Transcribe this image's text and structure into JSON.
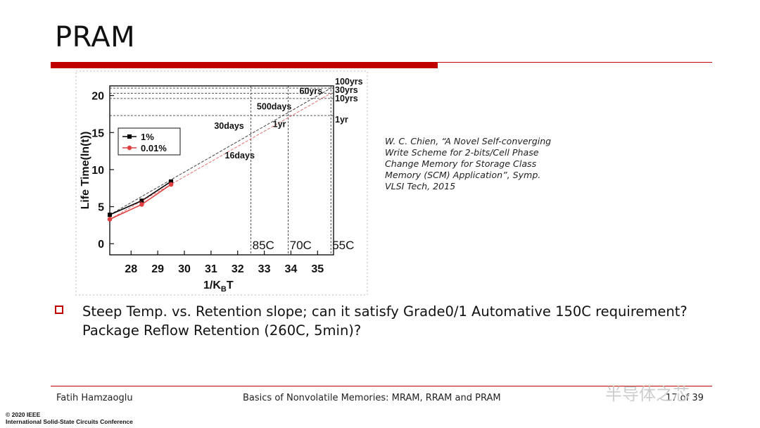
{
  "slide": {
    "title": "PRAM",
    "citation": "W. C. Chien, “A Novel Self-converging\nWrite Scheme for 2-bits/Cell Phase\nChange Memory for Storage Class\nMemory (SCM) Application”, Symp.\nVLSI Tech, 2015",
    "bullet": "Steep Temp. vs. Retention slope; can it satisfy Grade0/1 Automative 150C requirement? Package Reflow Retention (260C, 5min)?",
    "footer_author": "Fatih Hamzaoglu",
    "footer_title": "Basics of Nonvolatile Memories: MRAM, RRAM and PRAM",
    "footer_page": "17 of 39",
    "copyright_line1": "© 2020 IEEE",
    "copyright_line2": "International Solid-State Circuits Conference",
    "watermark": "半导体之芯"
  },
  "colors": {
    "accent_red": "#c00000",
    "red_series": "#e04040",
    "black_series": "#000000"
  },
  "chart_data": {
    "type": "line",
    "xlabel": "1/K",
    "xlabel_sub": "B",
    "xlabel_tail": "T",
    "ylabel": "Life Time(ln(t))",
    "xlim": [
      27.2,
      35.6
    ],
    "ylim": [
      -1.5,
      21.3
    ],
    "xticks": [
      "28",
      "29",
      "30",
      "31",
      "32",
      "33",
      "34",
      "35"
    ],
    "yticks": [
      "0",
      "5",
      "10",
      "15",
      "20"
    ],
    "series": [
      {
        "name": "1%",
        "color": "#000000",
        "marker": "square",
        "x": [
          27.2,
          28.4,
          29.5
        ],
        "y": [
          3.9,
          5.8,
          8.4
        ],
        "fit": [
          [
            27.2,
            3.9
          ],
          [
            35.5,
            21.0
          ]
        ]
      },
      {
        "name": "0.01%",
        "color": "#e04040",
        "marker": "circle",
        "x": [
          27.2,
          28.4,
          29.5
        ],
        "y": [
          3.3,
          5.3,
          8.0
        ],
        "fit": [
          [
            27.2,
            3.3
          ],
          [
            35.5,
            20.3
          ]
        ]
      }
    ],
    "hlines": [
      {
        "y": 21.0,
        "label": "100yrs"
      },
      {
        "y": 20.3,
        "label": "30yrs"
      },
      {
        "y": 19.6,
        "label": "10yrs"
      },
      {
        "y": 17.3,
        "label": "1yr"
      }
    ],
    "vlines": [
      {
        "x": 32.5,
        "label": "85C"
      },
      {
        "x": 33.9,
        "label": "70C"
      },
      {
        "x": 35.5,
        "label": "55C"
      }
    ],
    "annotations": [
      {
        "text": "60yrs",
        "x": 34.9,
        "y": 20.6
      },
      {
        "text": "500days",
        "x": 33.3,
        "y": 18.5
      },
      {
        "text": "30days",
        "x": 31.7,
        "y": 15.9
      },
      {
        "text": "1yr",
        "x": 33.9,
        "y": 16.1
      },
      {
        "text": "16days",
        "x": 32.1,
        "y": 11.9
      }
    ],
    "legend_position": "top-left",
    "grid": false
  }
}
